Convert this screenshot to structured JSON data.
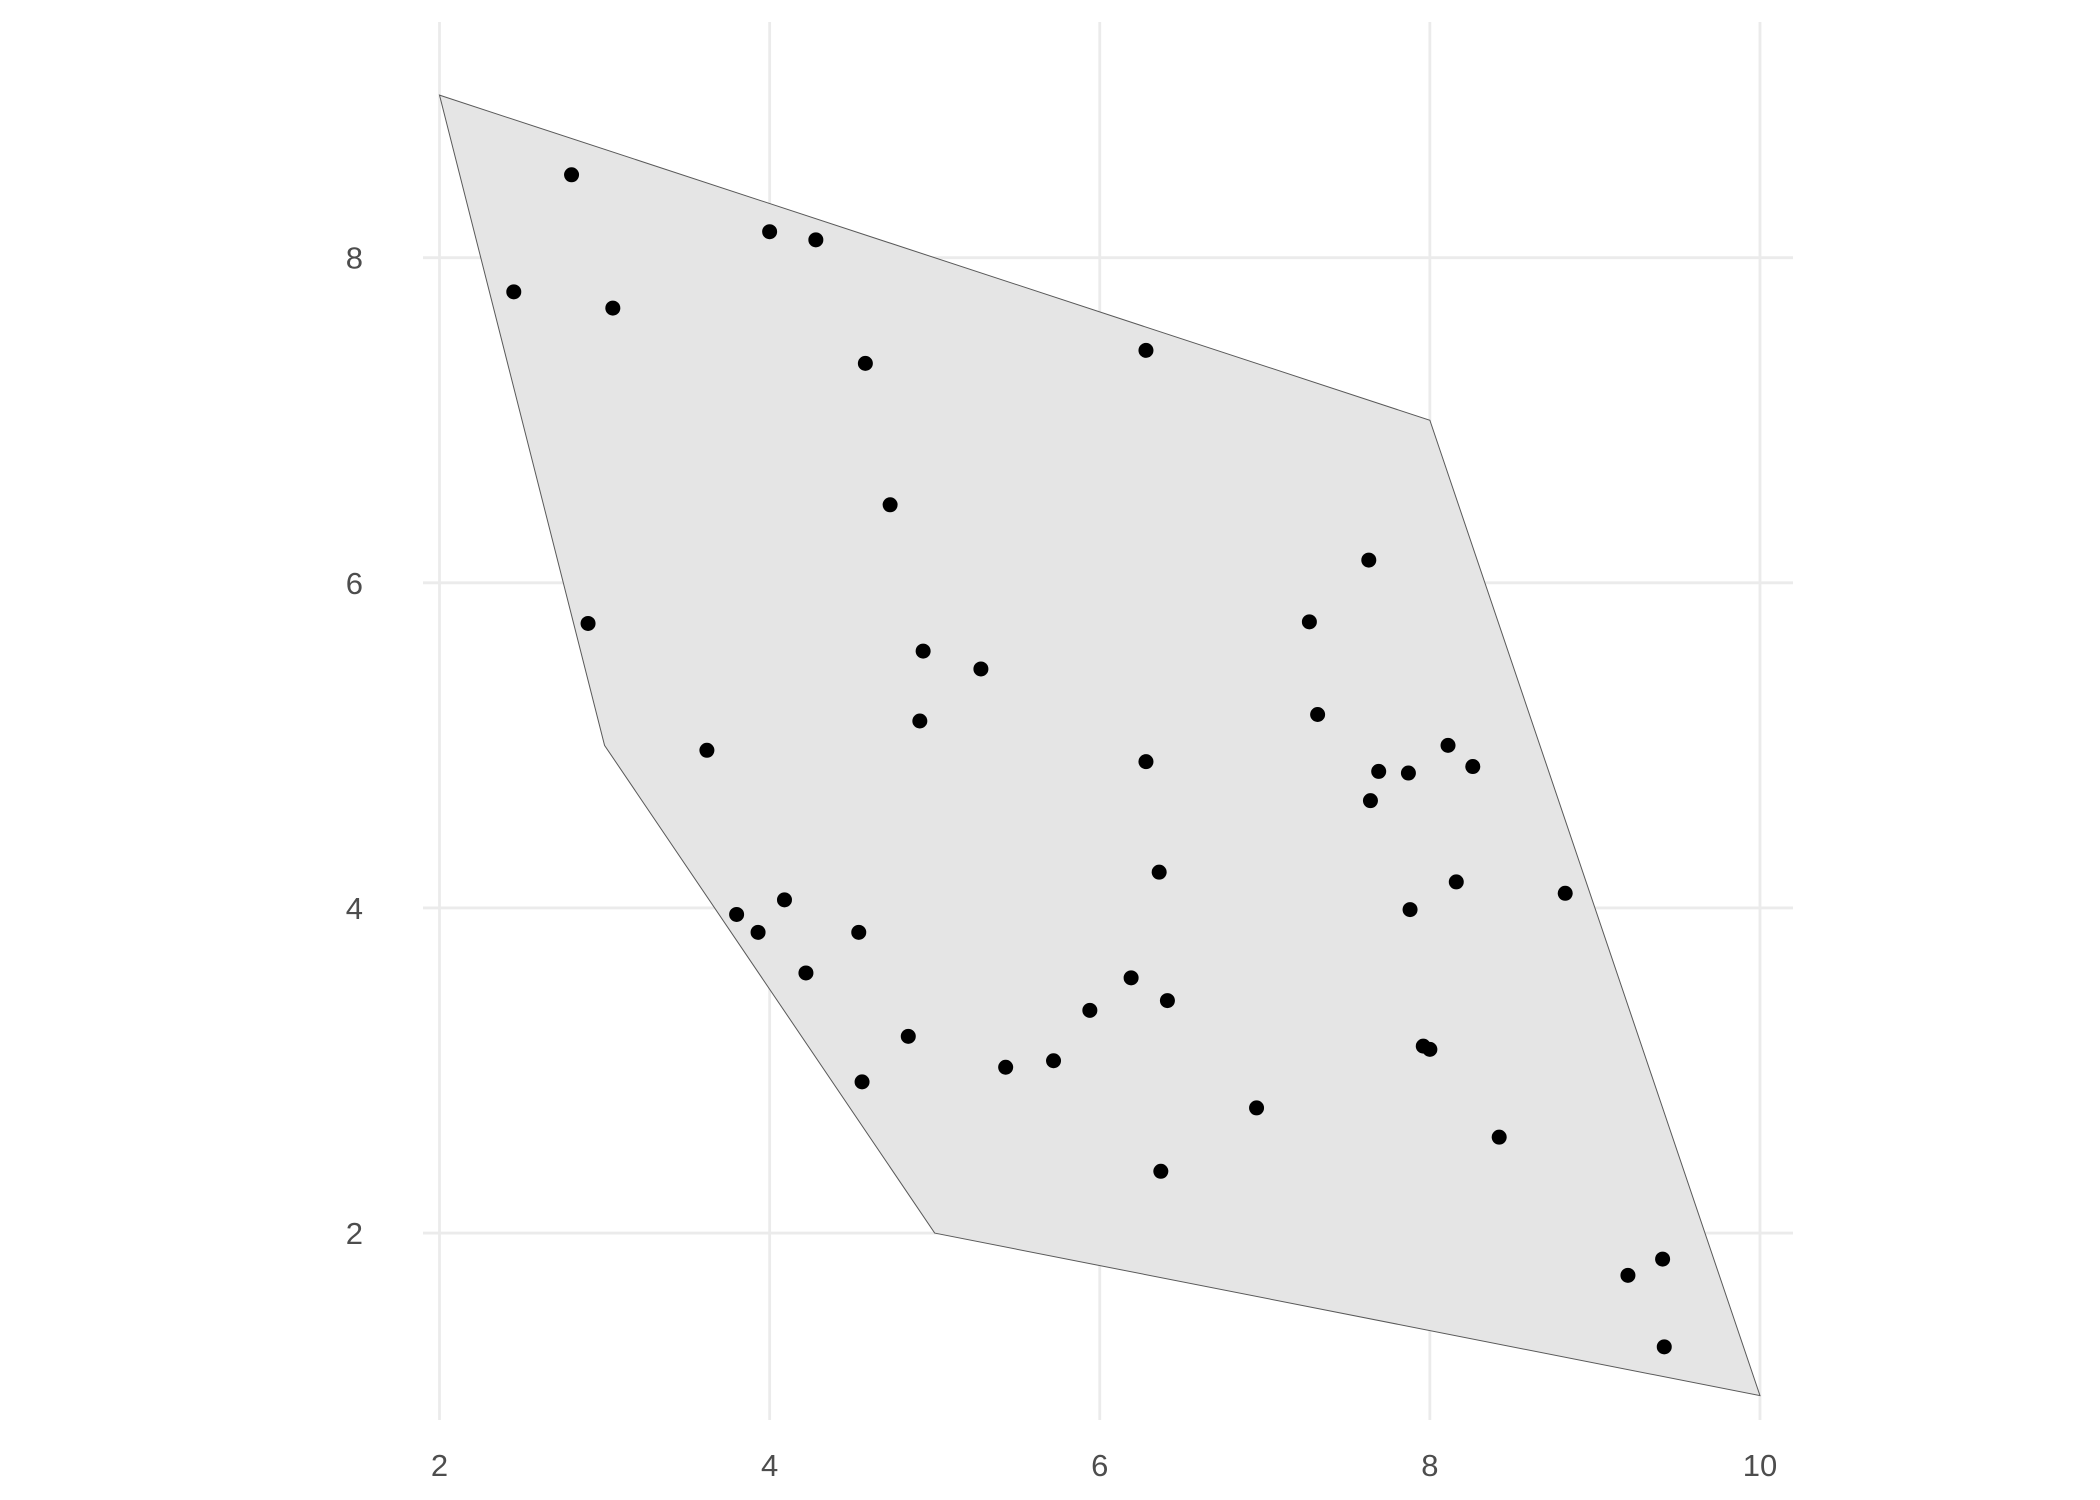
{
  "chart_data": {
    "type": "scatter",
    "title": "",
    "xlabel": "",
    "ylabel": "",
    "xlim": [
      1.9,
      10.2
    ],
    "ylim": [
      0.85,
      9.45
    ],
    "x_ticks": [
      2,
      4,
      6,
      8,
      10
    ],
    "y_ticks": [
      2,
      4,
      6,
      8
    ],
    "x_tick_labels": [
      "2",
      "4",
      "6",
      "8",
      "10"
    ],
    "y_tick_labels": [
      "2",
      "4",
      "6",
      "8"
    ],
    "grid": true,
    "legend": "none",
    "colors": {
      "points": "#000000",
      "polygon_fill": "#e5e5e5",
      "polygon_stroke": "#595959",
      "grid": "#ebebeb"
    },
    "polygon": {
      "x": [
        2,
        8,
        10,
        5,
        3
      ],
      "y": [
        9,
        7,
        1,
        2,
        5
      ]
    },
    "points": {
      "x": [
        2.8,
        2.45,
        3.05,
        4.0,
        4.28,
        4.58,
        6.28,
        4.73,
        2.9,
        7.63,
        4.93,
        7.27,
        5.28,
        4.91,
        7.32,
        3.62,
        6.28,
        8.11,
        7.69,
        7.87,
        8.26,
        7.64,
        6.36,
        8.16,
        8.82,
        4.09,
        3.8,
        3.93,
        4.54,
        7.88,
        4.22,
        6.19,
        6.41,
        5.94,
        4.84,
        7.96,
        8.0,
        5.72,
        5.43,
        4.56,
        6.95,
        8.42,
        6.37,
        9.41,
        9.2,
        9.42
      ],
      "y": [
        8.51,
        7.79,
        7.69,
        8.16,
        8.11,
        7.35,
        7.43,
        6.48,
        5.75,
        6.14,
        5.58,
        5.76,
        5.47,
        5.15,
        5.19,
        4.97,
        4.9,
        5.0,
        4.84,
        4.83,
        4.87,
        4.66,
        4.22,
        4.16,
        4.09,
        4.05,
        3.96,
        3.85,
        3.85,
        3.99,
        3.6,
        3.57,
        3.43,
        3.37,
        3.21,
        3.15,
        3.13,
        3.06,
        3.02,
        2.93,
        2.77,
        2.59,
        2.38,
        1.84,
        1.74,
        1.3
      ]
    }
  }
}
